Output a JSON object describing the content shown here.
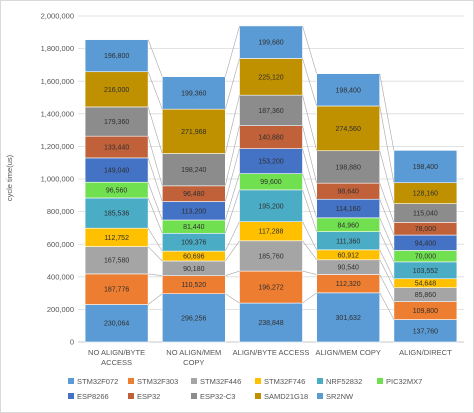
{
  "chart_data": {
    "type": "bar",
    "stacked": true,
    "ylabel": "cycle time(us)",
    "xlabel": "",
    "ylim": [
      0,
      2000000
    ],
    "yticks": [
      "0",
      "200,000",
      "400,000",
      "600,000",
      "800,000",
      "1,000,000",
      "1,200,000",
      "1,400,000",
      "1,600,000",
      "1,800,000",
      "2,000,000"
    ],
    "grid": true,
    "legend_position": "bottom",
    "categories": [
      [
        "NO ALIGN/BYTE",
        "ACCESS"
      ],
      [
        "NO ALIGN/MEM",
        "COPY"
      ],
      [
        "ALIGN/BYTE ACCESS"
      ],
      [
        "ALIGN/MEM COPY"
      ],
      [
        "ALIGN/DIRECT"
      ]
    ],
    "series": [
      {
        "name": "STM32F072",
        "color": "#5b9bd5",
        "label_color": "#2f2f2f",
        "values": [
          230064,
          296256,
          238848,
          301632,
          137760
        ],
        "labels": [
          "230,064",
          "296,256",
          "238,848",
          "301,632",
          "137,760"
        ]
      },
      {
        "name": "STM32F303",
        "color": "#ed7d31",
        "label_color": "#2f2f2f",
        "values": [
          187776,
          110520,
          196272,
          112320,
          109800
        ],
        "labels": [
          "187,776",
          "110,520",
          "196,272",
          "112,320",
          "109,800"
        ]
      },
      {
        "name": "STM32F446",
        "color": "#a5a5a5",
        "label_color": "#2f2f2f",
        "values": [
          167580,
          90180,
          185760,
          90540,
          85860
        ],
        "labels": [
          "167,580",
          "90,180",
          "185,760",
          "90,540",
          "85,860"
        ]
      },
      {
        "name": "STM32F746",
        "color": "#ffc000",
        "label_color": "#2f2f2f",
        "values": [
          112752,
          60696,
          117288,
          60912,
          54648
        ],
        "labels": [
          "112,752",
          "60,696",
          "117,288",
          "60,912",
          "54,648"
        ]
      },
      {
        "name": "NRF52832",
        "color": "#4bacc6",
        "label_color": "#2f2f2f",
        "values": [
          185536,
          109376,
          195200,
          111360,
          103552
        ],
        "labels": [
          "185,536",
          "109,376",
          "195,200",
          "111,360",
          "103,552"
        ]
      },
      {
        "name": "PIC32MX7",
        "color": "#70e050",
        "label_color": "#2f2f2f",
        "values": [
          96560,
          81440,
          99600,
          84960,
          70000
        ],
        "labels": [
          "96,560",
          "81,440",
          "99,600",
          "84,960",
          "70,000"
        ]
      },
      {
        "name": "ESP8266",
        "color": "#4472c4",
        "label_color": "#2f2f2f",
        "values": [
          149040,
          113200,
          153200,
          114160,
          94400
        ],
        "labels": [
          "149,040",
          "113,200",
          "153,200",
          "114,160",
          "94,400"
        ]
      },
      {
        "name": "ESP32",
        "color": "#c0613a",
        "label_color": "#2f2f2f",
        "values": [
          133440,
          96480,
          140880,
          98640,
          78000
        ],
        "labels": [
          "133,440",
          "96,480",
          "140,880",
          "98,640",
          "78,000"
        ]
      },
      {
        "name": "ESP32-C3",
        "color": "#8c8c8c",
        "label_color": "#2f2f2f",
        "values": [
          179360,
          198240,
          187360,
          198880,
          115040
        ],
        "labels": [
          "179,360",
          "198,240",
          "187,360",
          "198,880",
          "115,040"
        ]
      },
      {
        "name": "SAMD21G18",
        "color": "#bf9000",
        "label_color": "#2f2f2f",
        "values": [
          216000,
          271968,
          225120,
          274560,
          128160
        ],
        "labels": [
          "216,000",
          "271,968",
          "225,120",
          "274,560",
          "128,160"
        ]
      },
      {
        "name": "SR2NW",
        "color": "#5b9bd5",
        "label_color": "#2f2f2f",
        "values": [
          196800,
          199360,
          199680,
          198400,
          198400
        ],
        "labels": [
          "196,800",
          "199,360",
          "199,680",
          "198,400",
          "198,400"
        ]
      }
    ]
  }
}
